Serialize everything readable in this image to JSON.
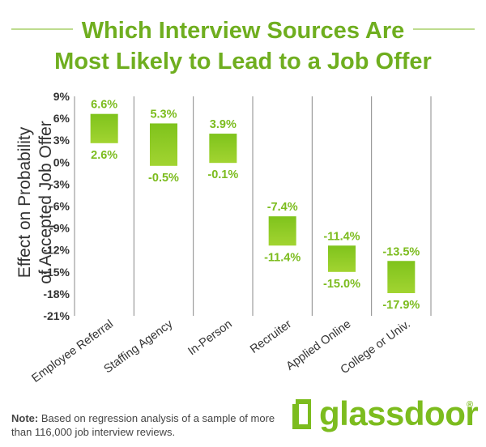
{
  "title_line1": "Which Interview Sources Are",
  "title_line2": "Most Likely to Lead to a Job Offer",
  "colors": {
    "title": "#6fae1f",
    "bar_top": "#7fc31c",
    "bar_bottom": "#a2d431",
    "label": "#7cbc1e",
    "axis_text": "#333333",
    "grid": "#888888"
  },
  "chart_data": {
    "type": "bar",
    "subtype": "floating-range",
    "title": "Which Interview Sources Are Most Likely to Lead to a Job Offer",
    "ylabel_line1": "Effect on Probability",
    "ylabel_line2": "of Accepted Job Offer",
    "ylim": [
      -21,
      9
    ],
    "yticks": [
      "9%",
      "6%",
      "3%",
      "0%",
      "-3%",
      "-6%",
      "-9%",
      "-12%",
      "-15%",
      "-18%",
      "-21%"
    ],
    "ytick_values": [
      9,
      6,
      3,
      0,
      -3,
      -6,
      -9,
      -12,
      -15,
      -18,
      -21
    ],
    "categories": [
      "Employee Referral",
      "Staffing Agency",
      "In-Person",
      "Recruiter",
      "Applied Online",
      "College or Univ."
    ],
    "high": [
      6.6,
      5.3,
      3.9,
      -7.4,
      -11.4,
      -13.5
    ],
    "low": [
      2.6,
      -0.5,
      -0.1,
      -11.4,
      -15.0,
      -17.9
    ],
    "high_labels": [
      "6.6%",
      "5.3%",
      "3.9%",
      "-7.4%",
      "-11.4%",
      "-13.5%"
    ],
    "low_labels": [
      "2.6%",
      "-0.5%",
      "-0.1%",
      "-11.4%",
      "-15.0%",
      "-17.9%"
    ],
    "grid": "vertical separators",
    "legend": "none"
  },
  "note": {
    "label": "Note:",
    "text": " Based on regression analysis of a sample of more than 116,000 job interview reviews."
  },
  "logo": {
    "word": "glassdoor",
    "reg": "®",
    "color": "#7cbc1e"
  }
}
